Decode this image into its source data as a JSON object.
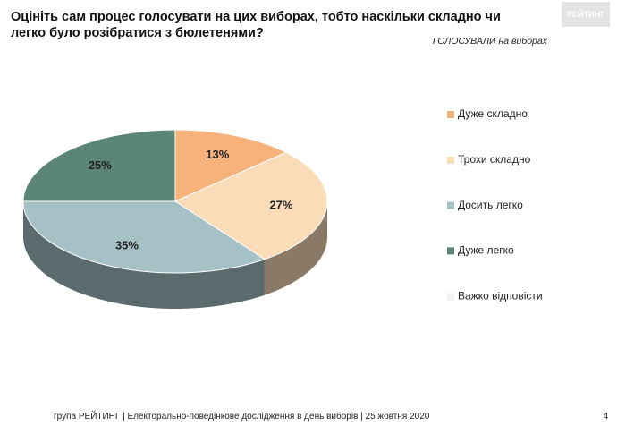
{
  "title": "Оцініть сам процес голосувати на цих виборах, тобто наскільки складно чи легко було розібратися з бюлетенями?",
  "subtitle": "ГОЛОСУВАЛИ на виборах",
  "logo": "РЕЙТИНГ",
  "footer": "група РЕЙТИНГ | Електорально-поведінкове дослідження в день виборів | 25 жовтня 2020",
  "page_number": "4",
  "chart_data": {
    "type": "pie",
    "categories": [
      "Дуже складно",
      "Трохи складно",
      "Досить легко",
      "Дуже легко",
      "Важко відповісти"
    ],
    "values": [
      13,
      27,
      35,
      25,
      0
    ],
    "value_labels": [
      "13%",
      "27%",
      "35%",
      "25%",
      null
    ],
    "colors": [
      "#f6b27a",
      "#fbdcb9",
      "#a5c1c6",
      "#5b8676",
      "#f2f2f2"
    ]
  }
}
